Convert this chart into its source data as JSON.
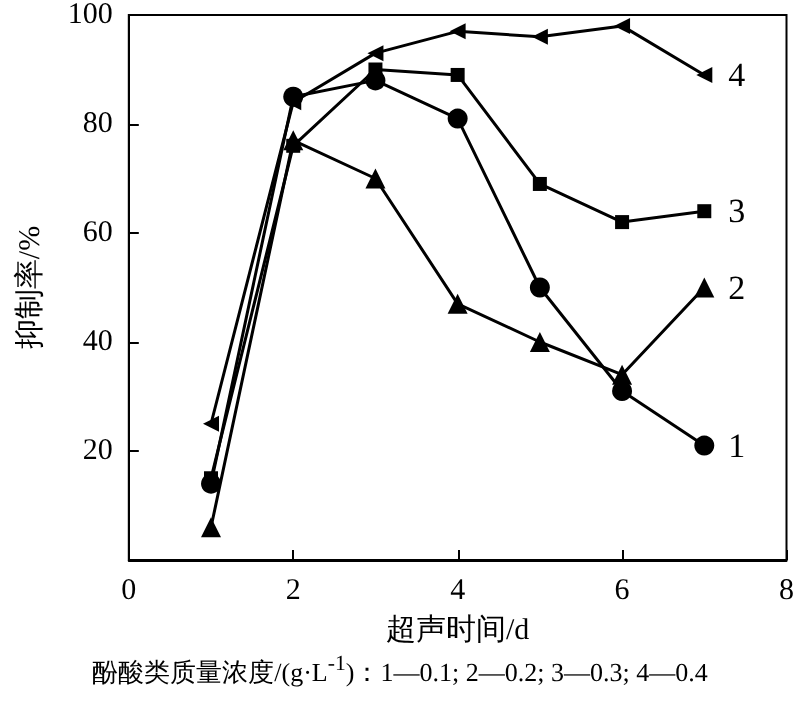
{
  "chart_data": {
    "type": "line",
    "xlabel": "超声时间/d",
    "ylabel": "抑制率/%",
    "annotations": [
      "酚酸类质量浓度/(g·L$^{-1}$)：1—0.1; 2—0.2; 3—0.3; 4—0.4"
    ],
    "x": [
      1,
      2,
      3,
      4,
      5,
      6,
      7
    ],
    "series": [
      {
        "name": "1",
        "color": "#000000",
        "marker": "circle",
        "values": [
          14,
          85,
          88,
          81,
          50,
          31,
          21
        ]
      },
      {
        "name": "2",
        "color": "#000000",
        "marker": "triangle",
        "values": [
          6,
          77,
          70,
          47,
          40,
          34,
          50
        ]
      },
      {
        "name": "3",
        "color": "#000000",
        "marker": "square",
        "values": [
          15,
          76,
          90,
          89,
          69,
          62,
          64
        ]
      },
      {
        "name": "4",
        "color": "#000000",
        "marker": "triangle-left",
        "values": [
          25,
          84,
          93,
          97,
          96,
          98,
          89
        ]
      }
    ],
    "xlim": [
      0,
      8
    ],
    "xticks": [
      0,
      2,
      4,
      6,
      8
    ],
    "ylim": [
      0,
      100
    ],
    "yticks": [
      20,
      40,
      60,
      80,
      100
    ],
    "grid": false,
    "legend": false,
    "line_style": "solid"
  }
}
